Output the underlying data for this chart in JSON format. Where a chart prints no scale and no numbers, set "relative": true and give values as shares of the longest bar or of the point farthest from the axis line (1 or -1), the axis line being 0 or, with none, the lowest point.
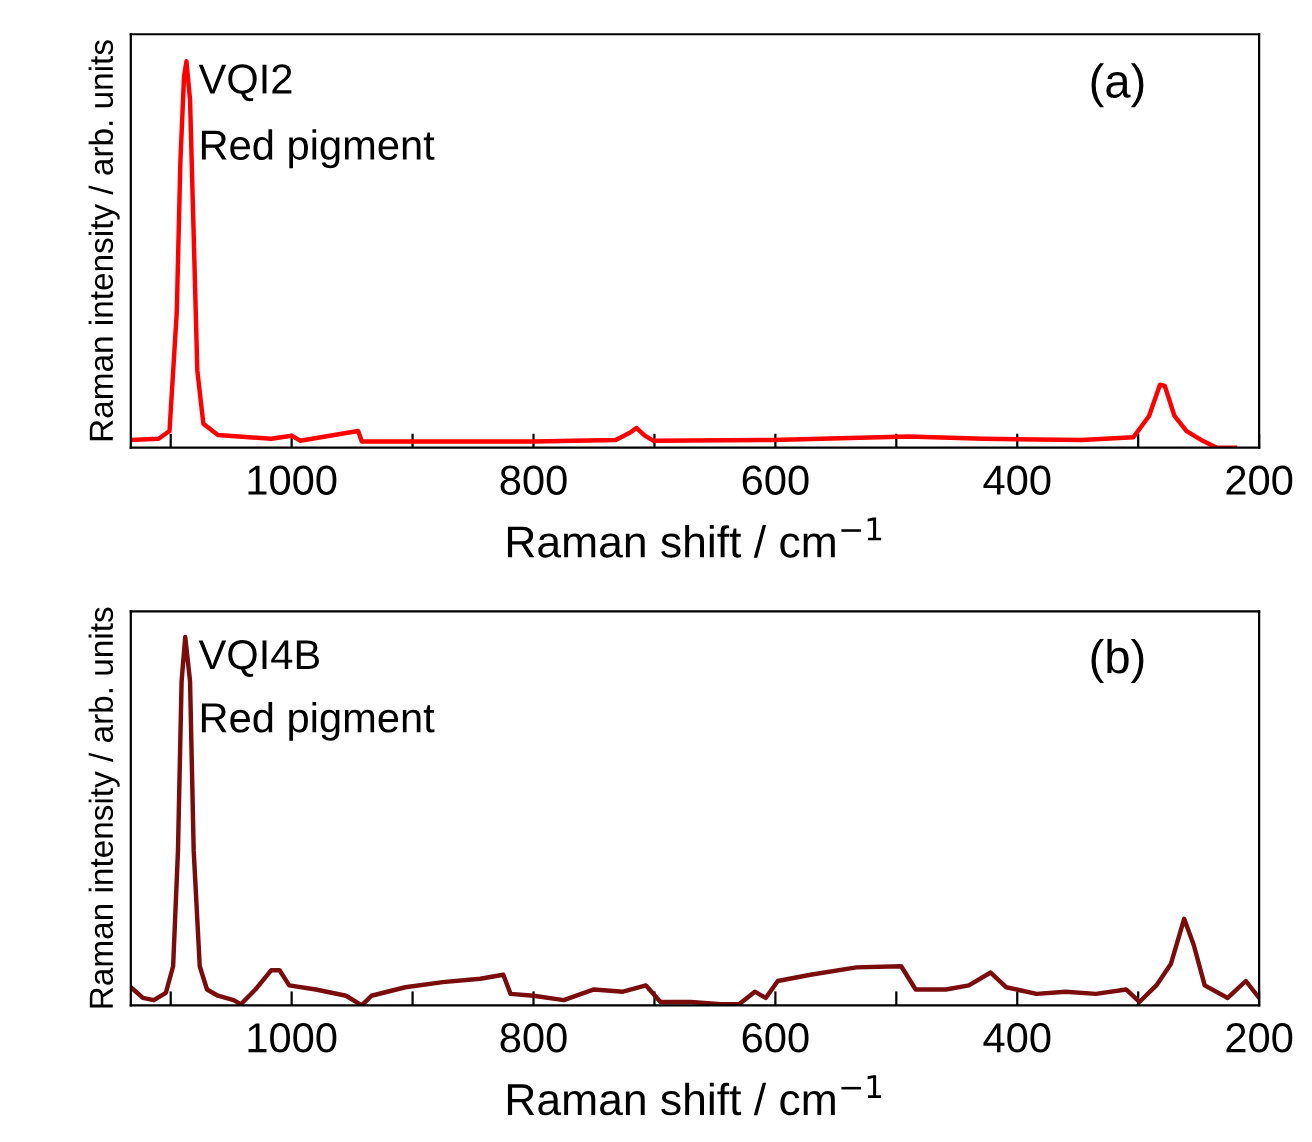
{
  "chart_data": [
    {
      "type": "line",
      "relative": true,
      "xlabel": "Raman shift / cm$^{−1}$",
      "ylabel": "Raman intensity / arb. units",
      "annotations": [
        "VQI2",
        "Red pigment",
        "(a)"
      ],
      "xlim": [
        1133,
        200
      ],
      "xticks": [
        {
          "value": 1100,
          "label": null
        },
        1000,
        {
          "value": 900,
          "label": null
        },
        800,
        {
          "value": 700,
          "label": null
        },
        600,
        {
          "value": 500,
          "label": null
        },
        400,
        {
          "value": 300,
          "label": null
        },
        200
      ],
      "tick_labels": "x",
      "grid": false,
      "legend": false,
      "line_style": "solid",
      "x": [
        1133,
        1110,
        1101,
        1095,
        1092,
        1089,
        1087,
        1084,
        1081,
        1078,
        1073,
        1061,
        1017,
        1000,
        993,
        945,
        942,
        862,
        800,
        732,
        720,
        715,
        708,
        701,
        602,
        490,
        428,
        347,
        304,
        291,
        282,
        278,
        270,
        260,
        248,
        235,
        220
      ],
      "series": [
        {
          "color": "#ff0000",
          "values": [
            0.02,
            0.023,
            0.043,
            0.35,
            0.74,
            0.96,
            1,
            0.9,
            0.55,
            0.2,
            0.062,
            0.033,
            0.023,
            0.031,
            0.018,
            0.043,
            0.016,
            0.016,
            0.016,
            0.02,
            0.039,
            0.051,
            0.031,
            0.018,
            0.02,
            0.029,
            0.023,
            0.02,
            0.027,
            0.082,
            0.163,
            0.16,
            0.082,
            0.043,
            0.02,
            0,
            0
          ]
        }
      ]
    },
    {
      "type": "line",
      "relative": true,
      "xlabel": "Raman shift / cm$^{−1}$",
      "ylabel": "Raman intensity / arb. units",
      "annotations": [
        "VQI4B",
        "Red pigment",
        "(b)"
      ],
      "xlim": [
        1133,
        200
      ],
      "xticks": [
        {
          "value": 1100,
          "label": null
        },
        1000,
        {
          "value": 900,
          "label": null
        },
        800,
        {
          "value": 700,
          "label": null
        },
        600,
        {
          "value": 500,
          "label": null
        },
        400,
        {
          "value": 300,
          "label": null
        },
        200
      ],
      "tick_labels": "x",
      "grid": false,
      "legend": false,
      "line_style": "solid",
      "x": [
        1133,
        1123,
        1114,
        1104,
        1098,
        1094,
        1091,
        1088,
        1084,
        1081,
        1076,
        1070,
        1061,
        1048,
        1042,
        1030,
        1017,
        1010,
        1002,
        980,
        955,
        942,
        934,
        906,
        875,
        844,
        825,
        819,
        800,
        775,
        750,
        726,
        707,
        695,
        670,
        645,
        630,
        617,
        608,
        598,
        571,
        533,
        496,
        484,
        459,
        440,
        422,
        409,
        384,
        360,
        335,
        310,
        299,
        285,
        273,
        262,
        254,
        245,
        226,
        211,
        200
      ],
      "series": [
        {
          "color": "#7b0c0c",
          "values": [
            0.049,
            0.02,
            0.014,
            0.034,
            0.106,
            0.42,
            0.88,
            1,
            0.88,
            0.42,
            0.106,
            0.043,
            0.026,
            0.014,
            0.003,
            0.043,
            0.095,
            0.095,
            0.054,
            0.043,
            0.026,
            0,
            0.026,
            0.049,
            0.063,
            0.072,
            0.083,
            0.031,
            0.026,
            0.014,
            0.043,
            0.037,
            0.054,
            0.009,
            0.009,
            0.003,
            0.003,
            0.037,
            0.02,
            0.066,
            0.083,
            0.103,
            0.106,
            0.043,
            0.043,
            0.054,
            0.089,
            0.049,
            0.031,
            0.037,
            0.031,
            0.043,
            0.009,
            0.054,
            0.112,
            0.235,
            0.163,
            0.054,
            0.02,
            0.066,
            0.02
          ]
        }
      ]
    }
  ]
}
